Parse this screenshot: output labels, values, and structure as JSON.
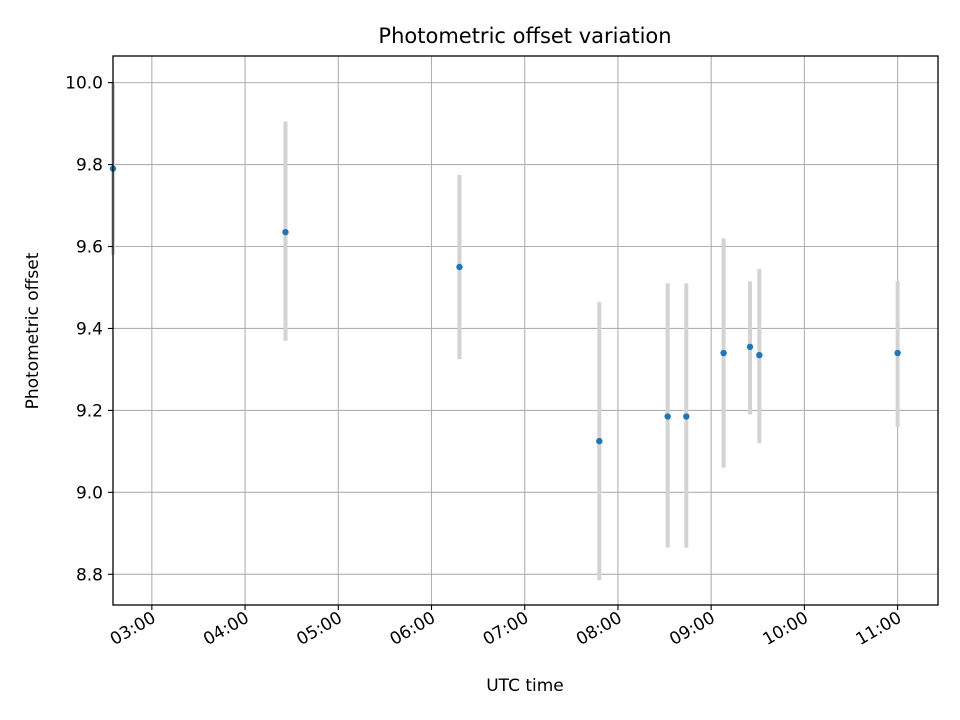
{
  "chart_data": {
    "type": "scatter",
    "title": "Photometric offset variation",
    "xlabel": "UTC time",
    "ylabel": "Photometric offset",
    "xlim": [
      "02:35",
      "11:26"
    ],
    "ylim": [
      8.725,
      10.065
    ],
    "x_ticks": [
      "03:00",
      "04:00",
      "05:00",
      "06:00",
      "07:00",
      "08:00",
      "09:00",
      "10:00",
      "11:00"
    ],
    "y_ticks": [
      8.8,
      9.0,
      9.2,
      9.4,
      9.6,
      9.8,
      10.0
    ],
    "grid": true,
    "marker_color": "#1f77b4",
    "errorbar_color": "#d3d3d3",
    "points": [
      {
        "time": "02:35",
        "y": 9.79,
        "err_low": 9.58,
        "err_high": 10.0
      },
      {
        "time": "04:26",
        "y": 9.635,
        "err_low": 9.37,
        "err_high": 9.905
      },
      {
        "time": "06:18",
        "y": 9.55,
        "err_low": 9.325,
        "err_high": 9.775
      },
      {
        "time": "07:48",
        "y": 9.125,
        "err_low": 8.785,
        "err_high": 9.465
      },
      {
        "time": "08:32",
        "y": 9.185,
        "err_low": 8.865,
        "err_high": 9.51
      },
      {
        "time": "08:44",
        "y": 9.185,
        "err_low": 8.865,
        "err_high": 9.51
      },
      {
        "time": "09:08",
        "y": 9.34,
        "err_low": 9.06,
        "err_high": 9.62
      },
      {
        "time": "09:25",
        "y": 9.355,
        "err_low": 9.19,
        "err_high": 9.515
      },
      {
        "time": "09:31",
        "y": 9.335,
        "err_low": 9.12,
        "err_high": 9.545
      },
      {
        "time": "11:00",
        "y": 9.34,
        "err_low": 9.16,
        "err_high": 9.515
      }
    ]
  }
}
